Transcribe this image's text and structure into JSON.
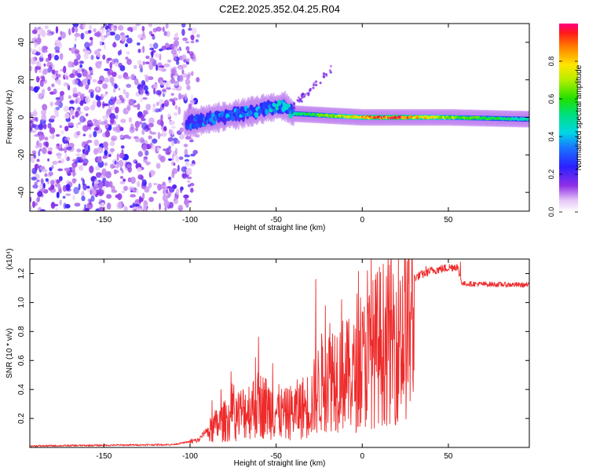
{
  "title": "C2E2.2025.352.04.25.R04",
  "chart_data": [
    {
      "type": "heatmap",
      "name": "spectrogram",
      "xlabel": "Height of straight line (km)",
      "ylabel": "Frequency (Hz)",
      "xlim": [
        -193,
        97
      ],
      "ylim": [
        -50,
        50
      ],
      "xticks": [
        -150,
        -100,
        -50,
        0,
        50
      ],
      "yticks": [
        -40,
        -20,
        0,
        20,
        40
      ],
      "colorbar": {
        "label": "Normalized spectral amplitude",
        "range": [
          0,
          1
        ],
        "ticks": [
          "0.0",
          "0.2",
          "0.4",
          "0.6",
          "0.8"
        ],
        "tick_values": [
          0.0,
          0.2,
          0.4,
          0.6,
          0.8
        ]
      },
      "features": {
        "noise_region_x": [
          -193,
          -98
        ],
        "ridge_path": [
          [
            -102,
            -3
          ],
          [
            -90,
            -1
          ],
          [
            -70,
            2
          ],
          [
            -55,
            5
          ],
          [
            -45,
            6
          ],
          [
            -40,
            2
          ],
          [
            -20,
            1
          ],
          [
            0,
            0
          ],
          [
            50,
            0
          ],
          [
            97,
            -1
          ]
        ],
        "ridge_amplitude": [
          [
            -100,
            0.35
          ],
          [
            -60,
            0.4
          ],
          [
            -40,
            0.5
          ],
          [
            -20,
            0.65
          ],
          [
            0,
            0.85
          ],
          [
            20,
            0.95
          ],
          [
            50,
            0.7
          ],
          [
            97,
            0.45
          ]
        ]
      }
    },
    {
      "type": "line",
      "name": "snr",
      "xlabel": "Height of straight line (km)",
      "ylabel": "SNR (10 * v/v)",
      "scale_label": "(x10⁴)",
      "xlim": [
        -193,
        97
      ],
      "ylim": [
        0,
        1.3
      ],
      "xticks": [
        -150,
        -100,
        -50,
        0,
        50
      ],
      "yticks": [
        "0.2",
        "0.4",
        "0.6",
        "0.8",
        "1.0",
        "1.2"
      ],
      "ytick_values": [
        0.2,
        0.4,
        0.6,
        0.8,
        1.0,
        1.2
      ],
      "series": [
        {
          "name": "SNR",
          "color": "#ee2a2a",
          "envelope": [
            [
              -193,
              0.01
            ],
            [
              -110,
              0.02
            ],
            [
              -95,
              0.05
            ],
            [
              -85,
              0.2
            ],
            [
              -60,
              0.4
            ],
            [
              -45,
              0.3
            ],
            [
              -30,
              0.4
            ],
            [
              -20,
              0.7
            ],
            [
              -5,
              0.65
            ],
            [
              10,
              0.95
            ],
            [
              25,
              1.05
            ],
            [
              30,
              1.17
            ],
            [
              40,
              1.22
            ],
            [
              55,
              1.25
            ],
            [
              58,
              1.13
            ],
            [
              97,
              1.12
            ]
          ],
          "spikes": [
            [
              -82,
              0.4
            ],
            [
              -62,
              0.62
            ],
            [
              -52,
              0.58
            ],
            [
              -27,
              1.16
            ],
            [
              -12,
              1.02
            ],
            [
              -3,
              1.06
            ],
            [
              3,
              1.22
            ],
            [
              14,
              1.18
            ],
            [
              22,
              1.15
            ],
            [
              37,
              1.25
            ],
            [
              57,
              1.28
            ]
          ]
        }
      ]
    }
  ]
}
